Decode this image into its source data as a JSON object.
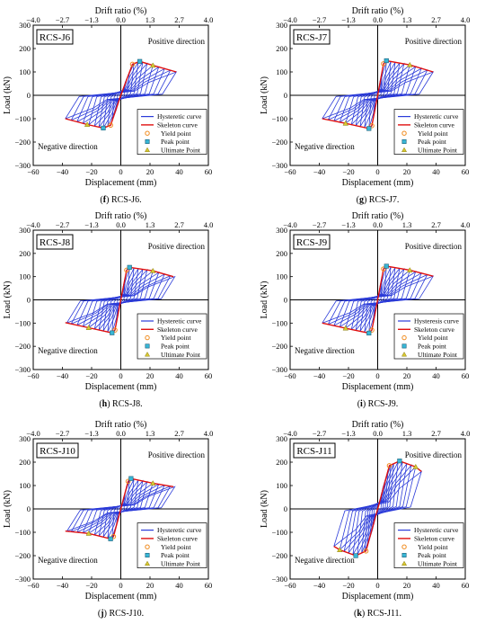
{
  "axis_text": {
    "top_xlabel": "Drift ratio (%)",
    "bottom_xlabel": "Displacement (mm)",
    "ylabel": "Load (kN)",
    "positive_label": "Positive direction",
    "negative_label": "Negative direction"
  },
  "chart_data": [
    {
      "type": "line",
      "specimen": "RCS-J6",
      "caption_letter": "f",
      "caption_text": "RCS-J6.",
      "legend": [
        "Hysteretic curve",
        "Skeleton curve",
        "Yield point",
        "Peak point",
        "Ultimate Point"
      ],
      "xlim": [
        -60,
        60
      ],
      "ylim": [
        -300,
        300
      ],
      "x_ticks": [
        -60,
        -40,
        -20,
        0,
        20,
        40,
        60
      ],
      "y_ticks": [
        -300,
        -200,
        -100,
        0,
        100,
        200,
        300
      ],
      "top_ticks": [
        "-4.0",
        "-2.7",
        "-1.3",
        "0.0",
        "1.3",
        "2.7",
        "4.0"
      ],
      "pos": {
        "yield": [
          8,
          133
        ],
        "peak": [
          13,
          145
        ],
        "ult": [
          22,
          128
        ],
        "end": [
          38,
          100
        ]
      },
      "neg": {
        "yield": [
          -7,
          -128
        ],
        "peak": [
          -12,
          -140
        ],
        "ult": [
          -23,
          -125
        ],
        "end": [
          -38,
          -100
        ]
      },
      "amps": [
        3,
        6,
        9,
        12,
        15,
        18,
        22,
        26,
        30,
        34,
        38
      ]
    },
    {
      "type": "line",
      "specimen": "RCS-J7",
      "caption_letter": "g",
      "caption_text": "RCS-J7.",
      "legend": [
        "Hysteretic curve",
        "Skeleton curve",
        "Yield point",
        "Peak point",
        "Ultimate Point"
      ],
      "xlim": [
        -60,
        60
      ],
      "ylim": [
        -300,
        300
      ],
      "x_ticks": [
        -60,
        -40,
        -20,
        0,
        20,
        40,
        60
      ],
      "y_ticks": [
        -300,
        -200,
        -100,
        0,
        100,
        200,
        300
      ],
      "top_ticks": [
        "-4.0",
        "-2.7",
        "-1.3",
        "0.0",
        "1.3",
        "2.7",
        "4.0"
      ],
      "pos": {
        "yield": [
          4,
          135
        ],
        "peak": [
          6,
          148
        ],
        "ult": [
          22,
          130
        ],
        "end": [
          38,
          100
        ]
      },
      "neg": {
        "yield": [
          -4,
          -130
        ],
        "peak": [
          -6,
          -142
        ],
        "ult": [
          -22,
          -120
        ],
        "end": [
          -38,
          -100
        ]
      },
      "amps": [
        3,
        6,
        9,
        12,
        15,
        18,
        22,
        26,
        30,
        34,
        38
      ]
    },
    {
      "type": "line",
      "specimen": "RCS-J8",
      "caption_letter": "h",
      "caption_text": "RCS-J8.",
      "legend": [
        "Hysteretic curve",
        "Skeleton curve",
        "Yield point",
        "Peak point",
        "Ultimate Point"
      ],
      "xlim": [
        -60,
        60
      ],
      "ylim": [
        -300,
        300
      ],
      "x_ticks": [
        -60,
        -40,
        -20,
        0,
        20,
        40,
        60
      ],
      "y_ticks": [
        -300,
        -200,
        -100,
        0,
        100,
        200,
        300
      ],
      "top_ticks": [
        "-4.0",
        "-2.7",
        "-1.3",
        "0.0",
        "1.3",
        "2.7",
        "4.0"
      ],
      "pos": {
        "yield": [
          4,
          128
        ],
        "peak": [
          6,
          140
        ],
        "ult": [
          22,
          125
        ],
        "end": [
          36,
          100
        ]
      },
      "neg": {
        "yield": [
          -4,
          -130
        ],
        "peak": [
          -6,
          -142
        ],
        "ult": [
          -22,
          -120
        ],
        "end": [
          -38,
          -98
        ]
      },
      "amps": [
        3,
        6,
        9,
        12,
        15,
        18,
        22,
        26,
        30,
        34,
        37
      ]
    },
    {
      "type": "line",
      "specimen": "RCS-J9",
      "caption_letter": "i",
      "caption_text": "RCS-J9.",
      "legend": [
        "Hysteresis curve",
        "Skeleton curve",
        "Yield point",
        "Peak point",
        "Ultimate Point"
      ],
      "xlim": [
        -60,
        60
      ],
      "ylim": [
        -300,
        300
      ],
      "x_ticks": [
        -60,
        -40,
        -20,
        0,
        20,
        40,
        60
      ],
      "y_ticks": [
        -300,
        -200,
        -100,
        0,
        100,
        200,
        300
      ],
      "top_ticks": [
        "-4.0",
        "-2.7",
        "-1.3",
        "0.0",
        "1.3",
        "2.7",
        "4.0"
      ],
      "pos": {
        "yield": [
          4,
          133
        ],
        "peak": [
          6,
          145
        ],
        "ult": [
          22,
          128
        ],
        "end": [
          38,
          102
        ]
      },
      "neg": {
        "yield": [
          -4,
          -130
        ],
        "peak": [
          -6,
          -143
        ],
        "ult": [
          -22,
          -122
        ],
        "end": [
          -38,
          -100
        ]
      },
      "amps": [
        3,
        6,
        9,
        12,
        15,
        18,
        22,
        26,
        30,
        34,
        38
      ]
    },
    {
      "type": "line",
      "specimen": "RCS-J10",
      "caption_letter": "j",
      "caption_text": "RCS-J10.",
      "legend": [
        "Hysteretic curve",
        "Skeleton curve",
        "Yield point",
        "Peak point",
        "Ultimate Point"
      ],
      "xlim": [
        -60,
        60
      ],
      "ylim": [
        -300,
        300
      ],
      "x_ticks": [
        -60,
        -40,
        -20,
        0,
        20,
        40,
        60
      ],
      "y_ticks": [
        -300,
        -200,
        -100,
        0,
        100,
        200,
        300
      ],
      "top_ticks": [
        "-4.0",
        "-2.7",
        "-1.3",
        "0.0",
        "1.3",
        "2.7",
        "4.0"
      ],
      "pos": {
        "yield": [
          5,
          118
        ],
        "peak": [
          7,
          130
        ],
        "ult": [
          22,
          110
        ],
        "end": [
          36,
          95
        ]
      },
      "neg": {
        "yield": [
          -5,
          -118
        ],
        "peak": [
          -7,
          -128
        ],
        "ult": [
          -22,
          -105
        ],
        "end": [
          -38,
          -95
        ]
      },
      "amps": [
        3,
        6,
        9,
        12,
        15,
        18,
        22,
        26,
        30,
        34,
        37
      ]
    },
    {
      "type": "line",
      "specimen": "RCS-J11",
      "caption_letter": "k",
      "caption_text": "RCS-J11.",
      "legend": [
        "Hysteretic curve",
        "Skeleton curve",
        "Yield point",
        "Peak point",
        "Ultimate Point"
      ],
      "xlim": [
        -60,
        60
      ],
      "ylim": [
        -300,
        300
      ],
      "x_ticks": [
        -60,
        -40,
        -20,
        0,
        20,
        40,
        60
      ],
      "y_ticks": [
        -300,
        -200,
        -100,
        0,
        100,
        200,
        300
      ],
      "top_ticks": [
        "-4.0",
        "-2.7",
        "-1.3",
        "0.0",
        "1.3",
        "2.7",
        "4.0"
      ],
      "pos": {
        "yield": [
          8,
          185
        ],
        "peak": [
          15,
          205
        ],
        "ult": [
          26,
          180
        ],
        "end": [
          30,
          160
        ]
      },
      "neg": {
        "yield": [
          -8,
          -180
        ],
        "peak": [
          -15,
          -200
        ],
        "ult": [
          -26,
          -175
        ],
        "end": [
          -30,
          -160
        ]
      },
      "amps": [
        3,
        5,
        7,
        9,
        11,
        14,
        17,
        20,
        23,
        26,
        30
      ]
    }
  ]
}
